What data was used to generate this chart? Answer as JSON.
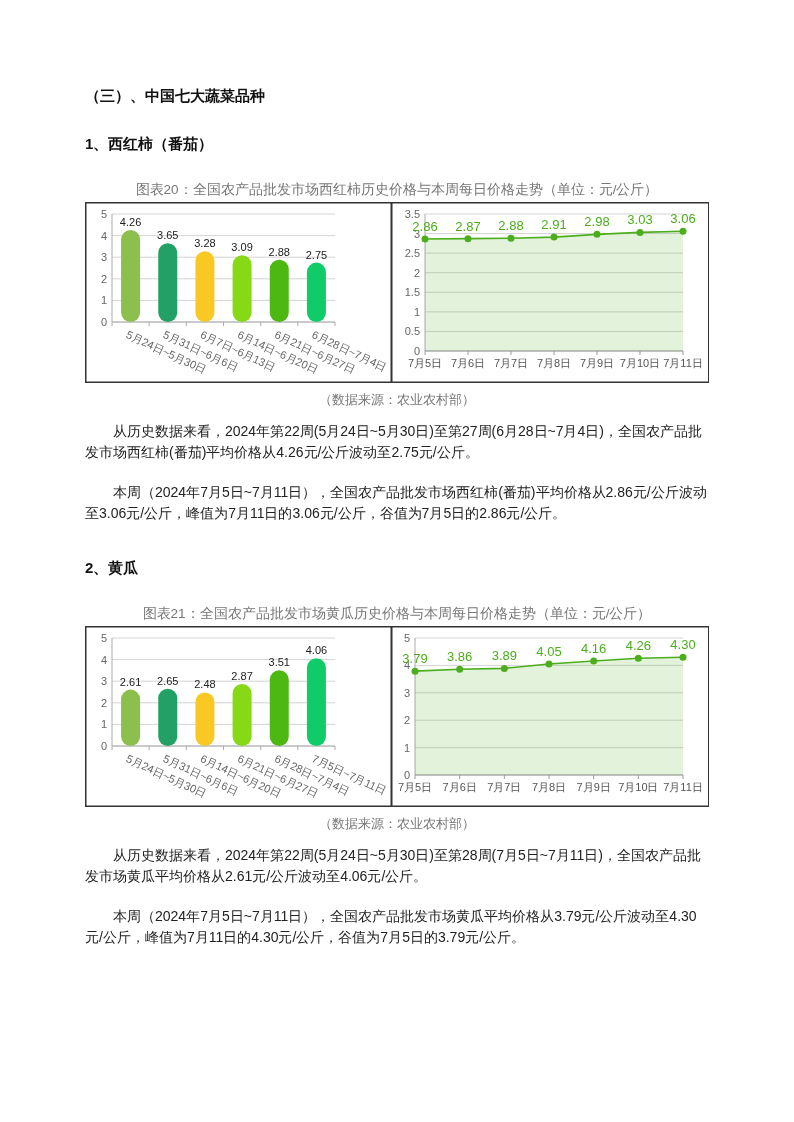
{
  "chart_data": [
    {
      "type": "bar",
      "title": "图表20：全国农产品批发市场西红柿历史价格与本周每日价格走势（单位：元/公斤）",
      "annotations": [
        "（三）、中国七大蔬菜品种",
        "1、西红柿（番茄）"
      ],
      "categories": [
        "5月24日~5月30日",
        "5月31日~6月6日",
        "6月7日~6月13日",
        "6月14日~6月20日",
        "6月21日~6月27日",
        "6月28日~7月4日"
      ],
      "values": [
        4.26,
        3.65,
        3.28,
        3.09,
        2.88,
        2.75
      ],
      "colors": [
        "#8dbf4e",
        "#23a066",
        "#f9c823",
        "#86d914",
        "#4cb811",
        "#0fcc68"
      ],
      "ylim": [
        0,
        5
      ],
      "yticks": [
        0,
        1,
        2,
        3,
        4,
        5
      ],
      "grid": "y",
      "data_labels": true
    },
    {
      "type": "area",
      "annotations": [
        "（数据来源：农业农村部）",
        "从历史数据来看，2024年第22周(5月24日~5月30日)至第27周(6月28日~7月4日)，全国农产品批发市场西红柿(番茄)平均价格从4.26元/公斤波动至2.75元/公斤。",
        "本周（2024年7月5日~7月11日），全国农产品批发市场西红柿(番茄)平均价格从2.86元/公斤波动至3.06元/公斤，峰值为7月11日的3.06元/公斤，谷值为7月5日的2.86元/公斤。"
      ],
      "categories": [
        "7月5日",
        "7月6日",
        "7月7日",
        "7月8日",
        "7月9日",
        "7月10日",
        "7月11日"
      ],
      "values": [
        2.86,
        2.87,
        2.88,
        2.91,
        2.98,
        3.03,
        3.06
      ],
      "color": "#4cae1d",
      "ylim": [
        0,
        3.5
      ],
      "yticks": [
        0,
        0.5,
        1,
        1.5,
        2,
        2.5,
        3,
        3.5
      ],
      "grid": "y",
      "data_labels": true,
      "marker": "circle",
      "line_style": "solid"
    },
    {
      "type": "bar",
      "title": "图表21：全国农产品批发市场黄瓜历史价格与本周每日价格走势（单位：元/公斤）",
      "annotations": [
        "2、黄瓜"
      ],
      "categories": [
        "5月24日~5月30日",
        "5月31日~6月6日",
        "6月14日~6月20日",
        "6月21日~6月27日",
        "6月28日~7月4日",
        "7月5日~7月11日"
      ],
      "values": [
        2.61,
        2.65,
        2.48,
        2.87,
        3.51,
        4.06
      ],
      "colors": [
        "#8dbf4e",
        "#23a066",
        "#f9c823",
        "#86d914",
        "#4cb811",
        "#0fcc68"
      ],
      "ylim": [
        0,
        5
      ],
      "yticks": [
        0,
        1,
        2,
        3,
        4,
        5
      ],
      "grid": "y",
      "data_labels": true
    },
    {
      "type": "area",
      "annotations": [
        "（数据来源：农业农村部）",
        "从历史数据来看，2024年第22周(5月24日~5月30日)至第28周(7月5日~7月11日)，全国农产品批发市场黄瓜平均价格从2.61元/公斤波动至4.06元/公斤。",
        "本周（2024年7月5日~7月11日），全国农产品批发市场黄瓜平均价格从3.79元/公斤波动至4.30元/公斤，峰值为7月11日的4.30元/公斤，谷值为7月5日的3.79元/公斤。"
      ],
      "categories": [
        "7月5日",
        "7月6日",
        "7月7日",
        "7月8日",
        "7月9日",
        "7月10日",
        "7月11日"
      ],
      "values": [
        3.79,
        3.86,
        3.89,
        4.05,
        4.16,
        4.26,
        4.3
      ],
      "value_labels": [
        "3.79",
        "3.86",
        "3.89",
        "4.05",
        "4.16",
        "4.26",
        "4.30"
      ],
      "color": "#4cae1d",
      "ylim": [
        0,
        5
      ],
      "yticks": [
        0,
        1,
        2,
        3,
        4,
        5
      ],
      "grid": "y",
      "marker": "circle",
      "line_style": "solid"
    }
  ]
}
